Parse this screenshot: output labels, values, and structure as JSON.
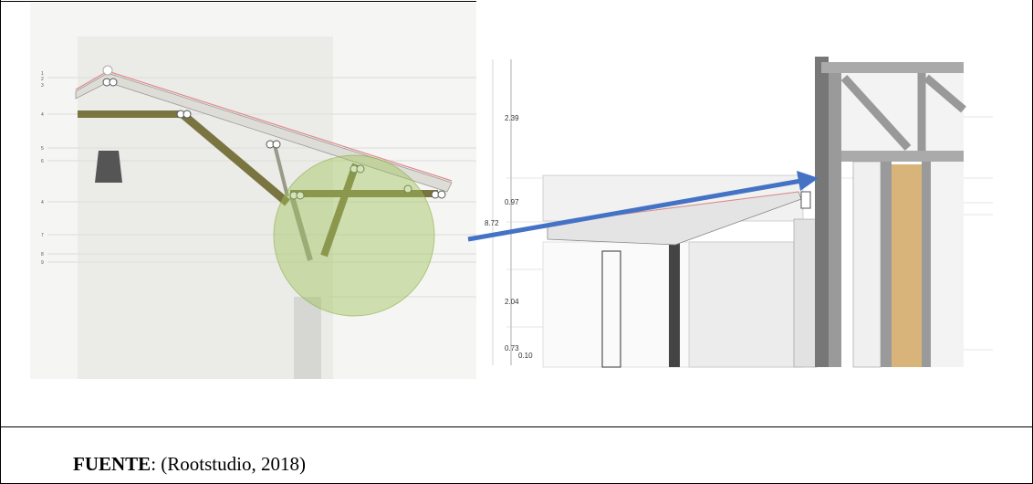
{
  "figure": {
    "left_labels": [
      "1",
      "2",
      "3",
      "4",
      "5",
      "6",
      "4",
      "7",
      "8",
      "9"
    ],
    "right_dimensions": [
      "2.39",
      "0.97",
      "8.72",
      "2.04",
      "0.73",
      "0.10"
    ]
  },
  "caption": {
    "label": "FUENTE",
    "text": ": (Rootstudio, 2018)"
  }
}
